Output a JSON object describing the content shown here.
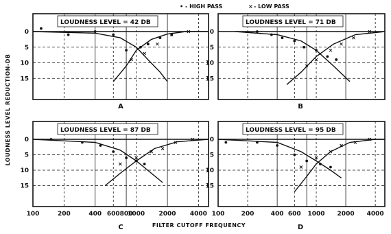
{
  "legend": {
    "hp_symbol": "•",
    "hp_label": "- HIGH PASS",
    "lp_symbol": "×",
    "lp_label": "- LOW PASS"
  },
  "ylabel": "LOUDNESS LEVEL REDUCTION-DB",
  "xlabel": "FILTER CUTOFF FREQUENCY",
  "colors": {
    "ink": "#111111",
    "bg": "#ffffff"
  },
  "chart_data": [
    {
      "type": "scatter",
      "panel": "A",
      "title": "LOUDNESS LEVEL = 42 DB",
      "xlim": [
        100,
        5000
      ],
      "ylim": [
        0,
        20
      ],
      "y_ticks": [
        "0",
        "5",
        "10",
        "15"
      ],
      "series": [
        {
          "name": "HIGH PASS",
          "markers": "dot",
          "points": [
            [
              120,
              -1
            ],
            [
              220,
              1
            ],
            [
              400,
              0
            ],
            [
              600,
              1
            ],
            [
              800,
              6
            ],
            [
              1100,
              5
            ],
            [
              1300,
              4
            ],
            [
              1700,
              2
            ],
            [
              2200,
              1
            ]
          ]
        },
        {
          "name": "LOW PASS",
          "markers": "x",
          "points": [
            [
              900,
              9
            ],
            [
              1200,
              7
            ],
            [
              1600,
              4
            ],
            [
              2200,
              1
            ],
            [
              3200,
              0
            ]
          ]
        }
      ],
      "curves": [
        {
          "name": "HIGH PASS",
          "points": [
            [
              100,
              0
            ],
            [
              400,
              0.5
            ],
            [
              700,
              2
            ],
            [
              1000,
              5
            ],
            [
              1300,
              9
            ],
            [
              1700,
              13
            ],
            [
              2000,
              16
            ]
          ]
        },
        {
          "name": "LOW PASS",
          "points": [
            [
              600,
              16
            ],
            [
              800,
              11
            ],
            [
              1000,
              6
            ],
            [
              1400,
              2.5
            ],
            [
              2000,
              0.8
            ],
            [
              3000,
              0
            ],
            [
              5000,
              0
            ]
          ]
        }
      ]
    },
    {
      "type": "scatter",
      "panel": "B",
      "title": "LOUDNESS LEVEL = 71 DB",
      "xlim": [
        100,
        5000
      ],
      "ylim": [
        0,
        20
      ],
      "y_ticks": [
        "0",
        "5",
        "10",
        "15"
      ],
      "series": [
        {
          "name": "HIGH PASS",
          "markers": "dot",
          "points": [
            [
              250,
              0
            ],
            [
              350,
              1
            ],
            [
              450,
              2
            ],
            [
              600,
              3
            ],
            [
              750,
              5
            ],
            [
              1000,
              6
            ],
            [
              1300,
              8
            ],
            [
              1600,
              9
            ]
          ]
        },
        {
          "name": "LOW PASS",
          "markers": "x",
          "points": [
            [
              800,
              11
            ],
            [
              1000,
              9
            ],
            [
              1400,
              6
            ],
            [
              1800,
              4
            ],
            [
              2400,
              2
            ],
            [
              3500,
              0
            ]
          ]
        }
      ],
      "curves": [
        {
          "name": "HIGH PASS",
          "points": [
            [
              150,
              0
            ],
            [
              400,
              1
            ],
            [
              700,
              3
            ],
            [
              1000,
              6
            ],
            [
              1500,
              11
            ],
            [
              2200,
              16
            ]
          ]
        },
        {
          "name": "LOW PASS",
          "points": [
            [
              500,
              17
            ],
            [
              700,
              13
            ],
            [
              1000,
              8
            ],
            [
              1500,
              4
            ],
            [
              2500,
              1
            ],
            [
              5000,
              0
            ]
          ]
        }
      ]
    },
    {
      "type": "scatter",
      "panel": "C",
      "title": "LOUDNESS LEVEL = 87 DB",
      "xlim": [
        100,
        5000
      ],
      "ylim": [
        0,
        20
      ],
      "y_ticks": [
        "0",
        "5",
        "10",
        "15"
      ],
      "series": [
        {
          "name": "HIGH PASS",
          "markers": "dot",
          "points": [
            [
              150,
              0
            ],
            [
              300,
              1
            ],
            [
              450,
              2
            ],
            [
              600,
              4
            ],
            [
              800,
              6
            ],
            [
              1000,
              7
            ],
            [
              1200,
              8
            ]
          ]
        },
        {
          "name": "LOW PASS",
          "markers": "x",
          "points": [
            [
              700,
              8
            ],
            [
              1000,
              6
            ],
            [
              1400,
              4
            ],
            [
              1800,
              3
            ],
            [
              2400,
              1
            ],
            [
              3500,
              0
            ]
          ]
        }
      ],
      "curves": [
        {
          "name": "HIGH PASS",
          "points": [
            [
              100,
              0
            ],
            [
              400,
              1
            ],
            [
              700,
              3.5
            ],
            [
              1000,
              7
            ],
            [
              1400,
              11
            ],
            [
              1800,
              14
            ]
          ]
        },
        {
          "name": "LOW PASS",
          "points": [
            [
              500,
              15
            ],
            [
              700,
              11
            ],
            [
              1000,
              7
            ],
            [
              1500,
              3
            ],
            [
              2500,
              0.8
            ],
            [
              5000,
              0
            ]
          ]
        }
      ]
    },
    {
      "type": "scatter",
      "panel": "D",
      "title": "LOUDNESS LEVEL = 95 DB",
      "xlim": [
        100,
        5000
      ],
      "ylim": [
        0,
        20
      ],
      "y_ticks": [
        "0",
        "5",
        "10",
        "15"
      ],
      "series": [
        {
          "name": "HIGH PASS",
          "markers": "dot",
          "points": [
            [
              120,
              1
            ],
            [
              250,
              1
            ],
            [
              400,
              2
            ],
            [
              600,
              5
            ],
            [
              800,
              7
            ],
            [
              1100,
              8
            ],
            [
              1400,
              9
            ]
          ]
        },
        {
          "name": "LOW PASS",
          "markers": "x",
          "points": [
            [
              700,
              9
            ],
            [
              1000,
              6
            ],
            [
              1400,
              4
            ],
            [
              1800,
              2
            ],
            [
              2500,
              1
            ],
            [
              3500,
              0
            ]
          ]
        }
      ],
      "curves": [
        {
          "name": "HIGH PASS",
          "points": [
            [
              100,
              0
            ],
            [
              400,
              1
            ],
            [
              700,
              4
            ],
            [
              1000,
              7
            ],
            [
              1400,
              10
            ],
            [
              1800,
              12.5
            ]
          ]
        },
        {
          "name": "LOW PASS",
          "points": [
            [
              600,
              17
            ],
            [
              800,
              12
            ],
            [
              1000,
              8
            ],
            [
              1400,
              4
            ],
            [
              2200,
              1
            ],
            [
              4000,
              0
            ],
            [
              5000,
              0
            ]
          ]
        }
      ]
    }
  ],
  "x_tick_values": [
    100,
    200,
    400,
    600,
    800,
    1000,
    2000,
    4000
  ],
  "x_tick_labels_c": [
    "100",
    "200",
    "400",
    "600",
    "800",
    "1000",
    "2000",
    "4000"
  ],
  "x_tick_labels_d": [
    "100",
    "200",
    "400",
    "600",
    "1000",
    "2000",
    "4000"
  ]
}
